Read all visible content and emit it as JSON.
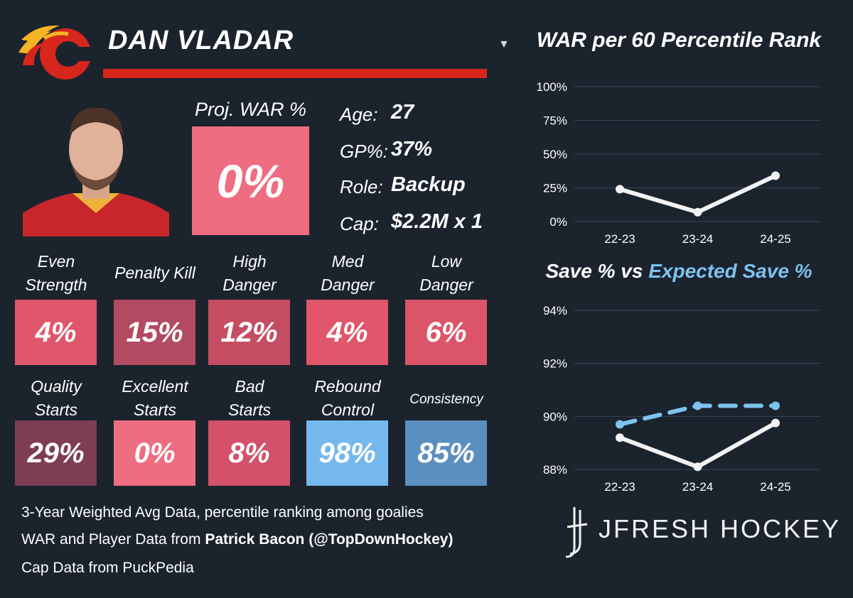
{
  "player": {
    "name": "DAN VLADAR",
    "proj_war_label": "Proj. WAR %",
    "proj_war_value": "0%",
    "proj_war_color": "#ef6d81",
    "info": [
      {
        "key": "Age:",
        "value": "27"
      },
      {
        "key": "GP%:",
        "value": "37%"
      },
      {
        "key": "Role:",
        "value": "Backup"
      },
      {
        "key": "Cap:",
        "value": "$2.2M x 1"
      }
    ]
  },
  "stats_row1": [
    {
      "label_line1": "Even",
      "label_line2": "Strength",
      "value": "4%",
      "color": "#e0566a"
    },
    {
      "label_line1": "Penalty Kill",
      "label_line2": "",
      "value": "15%",
      "color": "#b24a62"
    },
    {
      "label_line1": "High",
      "label_line2": "Danger",
      "value": "12%",
      "color": "#c44d63"
    },
    {
      "label_line1": "Med",
      "label_line2": "Danger",
      "value": "4%",
      "color": "#e0566a"
    },
    {
      "label_line1": "Low",
      "label_line2": "Danger",
      "value": "6%",
      "color": "#dc5468"
    }
  ],
  "stats_row2": [
    {
      "label_line1": "Quality",
      "label_line2": "Starts",
      "value": "29%",
      "color": "#7d3d54"
    },
    {
      "label_line1": "Excellent",
      "label_line2": "Starts",
      "value": "0%",
      "color": "#ef6d81"
    },
    {
      "label_line1": "Bad",
      "label_line2": "Starts",
      "value": "8%",
      "color": "#d3516a"
    },
    {
      "label_line1": "Rebound",
      "label_line2": "Control",
      "value": "98%",
      "color": "#74b8ee"
    },
    {
      "label_line1": "Consistency",
      "label_line2": "",
      "value": "85%",
      "color": "#5b8fbf"
    }
  ],
  "footer": {
    "line1": "3-Year Weighted Avg Data, percentile ranking among goalies",
    "line2_prefix": "WAR and Player Data from ",
    "line2_bold": "Patrick Bacon (@TopDownHockey)",
    "line3": "Cap Data from PuckPedia"
  },
  "brand": {
    "name": "JFRESH HOCKEY"
  },
  "icons": {
    "dropdown": "triangle-down-icon",
    "logo": "flames-c-logo",
    "brand": "jfresh-stick-logo"
  },
  "chart_data": [
    {
      "type": "line",
      "title": "WAR per 60 Percentile Rank",
      "categories": [
        "22-23",
        "23-24",
        "24-25"
      ],
      "y_ticks": [
        "100%",
        "75%",
        "50%",
        "25%",
        "0%"
      ],
      "ylim": [
        0,
        100
      ],
      "grid": true,
      "series": [
        {
          "values": [
            24,
            7,
            34
          ],
          "color": "#f2f2f2",
          "style": "solid"
        }
      ]
    },
    {
      "type": "line",
      "title_part1": "Save % vs ",
      "title_part2": "Expected Save %",
      "categories": [
        "22-23",
        "23-24",
        "24-25"
      ],
      "y_ticks": [
        "94%",
        "92%",
        "90%",
        "88%"
      ],
      "ylim": [
        88,
        94
      ],
      "grid": true,
      "series": [
        {
          "values": [
            89.2,
            88.1,
            89.75
          ],
          "color": "#f2f2f2",
          "style": "solid"
        },
        {
          "values": [
            89.7,
            90.4,
            90.4
          ],
          "color": "#7ec2f0",
          "style": "dashed"
        }
      ]
    }
  ]
}
